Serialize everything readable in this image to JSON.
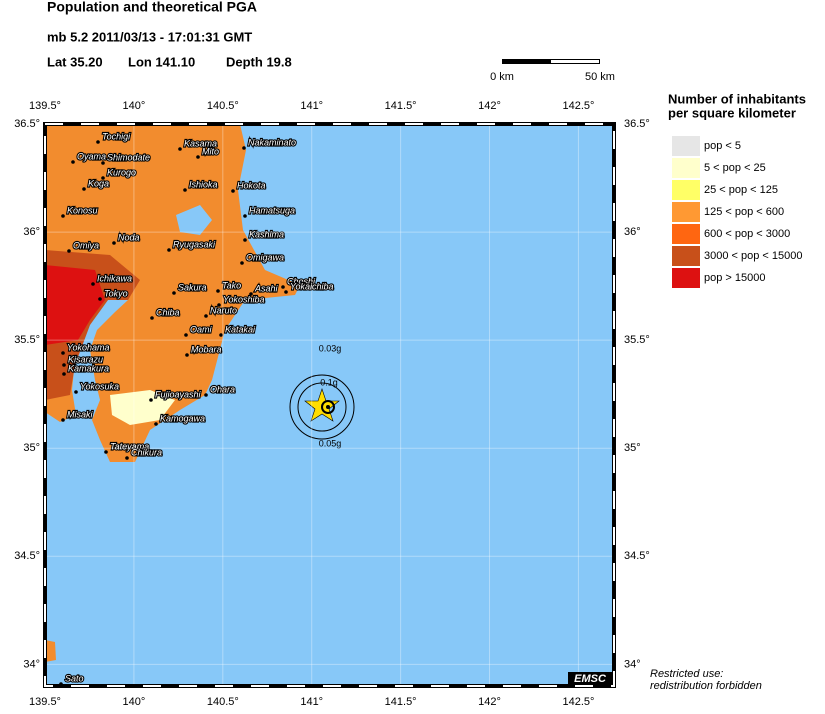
{
  "header": {
    "title": "Population and theoretical PGA",
    "event": "mb 5.2  2011/03/13 - 17:01:31 GMT",
    "lat": "Lat 35.20",
    "lon": "Lon 141.10",
    "depth": "Depth 19.8"
  },
  "scale": {
    "start": "0 km",
    "end": "50 km"
  },
  "map": {
    "lon_range": [
      139.5,
      142.7
    ],
    "lat_range": [
      33.9,
      36.5
    ],
    "lon_ticks": [
      {
        "value": 139.5,
        "label": "139.5°"
      },
      {
        "value": 140,
        "label": "140°"
      },
      {
        "value": 140.5,
        "label": "140.5°"
      },
      {
        "value": 141,
        "label": "141°"
      },
      {
        "value": 141.5,
        "label": "141.5°"
      },
      {
        "value": 142,
        "label": "142°"
      },
      {
        "value": 142.5,
        "label": "142.5°"
      }
    ],
    "lat_ticks": [
      {
        "value": 36.5,
        "label": "36.5°"
      },
      {
        "value": 36,
        "label": "36°"
      },
      {
        "value": 35.5,
        "label": "35.5°"
      },
      {
        "value": 35,
        "label": "35°"
      },
      {
        "value": 34.5,
        "label": "34.5°"
      },
      {
        "value": 34,
        "label": "34°"
      }
    ],
    "cities": [
      "Tochigi",
      "Kasama",
      "Mito",
      "Nakaminato",
      "Oyama",
      "Shimodate",
      "Kurogo",
      "Ishioka",
      "Hokota",
      "Koga",
      "Konosu",
      "Hamatsuga",
      "Kashima",
      "Omiya",
      "Noda",
      "Ryugasaki",
      "Omigawa",
      "Ichikawa",
      "Choshi",
      "Sakura",
      "Tako",
      "Asahi",
      "Yokaichiba",
      "Tokyo",
      "Yokoshiba",
      "Chiba",
      "Naruto",
      "Oami",
      "Katakai",
      "Yokohama",
      "Mobara",
      "Kisarazu",
      "Kamakura",
      "Yokosuka",
      "Fujioayashi",
      "Ohara",
      "Misaki",
      "Kamogawa",
      "Tateyama",
      "Chikura",
      "Sato"
    ],
    "pga_labels": [
      "0.03g",
      "0.1g",
      "0.05g"
    ],
    "agency": "EMSC",
    "notice": [
      "Restricted use:",
      "redistribution forbidden"
    ]
  },
  "legend": {
    "title": [
      "Number of inhabitants",
      "per square kilometer"
    ],
    "items": [
      {
        "label": "pop < 5",
        "color": "#e6e6e6"
      },
      {
        "label": "5 < pop < 25",
        "color": "#ffffcc"
      },
      {
        "label": "25 < pop < 125",
        "color": "#ffff66"
      },
      {
        "label": "125 < pop < 600",
        "color": "#ff9933"
      },
      {
        "label": "600 < pop < 3000",
        "color": "#ff6611"
      },
      {
        "label": "3000 < pop < 15000",
        "color": "#c8501a"
      },
      {
        "label": "pop > 15000",
        "color": "#dd1111"
      }
    ]
  }
}
